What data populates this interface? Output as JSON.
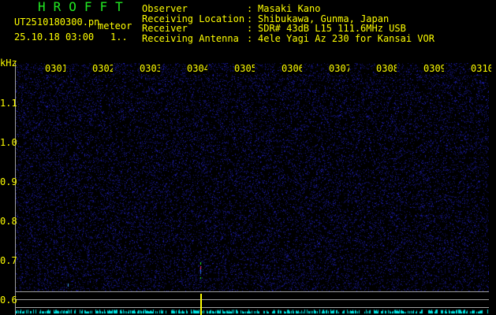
{
  "header": {
    "title": "HROFFT",
    "filename": "UT2510180300.pn",
    "meteor_label": "meteor",
    "datetime": "25.10.18 03:00",
    "count": "1..",
    "fields": [
      {
        "label": "Observer",
        "value": "Masaki Kano"
      },
      {
        "label": "Receiving Location",
        "value": "Shibukawa, Gunma, Japan"
      },
      {
        "label": "Receiver",
        "value": "SDR# 43dB L15 111.6MHz USB"
      },
      {
        "label": "Receiving Antenna",
        "value": "4ele Yagi Az 230 for Kansai VOR"
      }
    ]
  },
  "axis": {
    "unit": "kHz",
    "y_ticks": [
      "1.1",
      "1.0",
      "0.9",
      "0.8",
      "0.7",
      "0.6"
    ],
    "x_ticks": [
      "0301",
      "0302",
      "0303",
      "0304",
      "0305",
      "0306",
      "0307",
      "0308",
      "0309",
      "0310"
    ]
  },
  "colors": {
    "noise": "#1a1a90",
    "label": "#ffff00",
    "title": "#22e822",
    "histogram": "#00e8e8",
    "marker": "#ffff00"
  }
}
